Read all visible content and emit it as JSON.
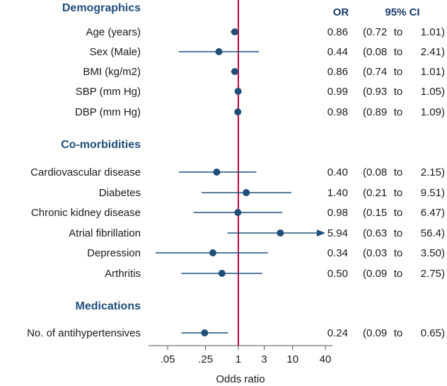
{
  "chart_data": {
    "type": "forest",
    "xlabel": "Odds ratio",
    "xscale": "log",
    "xlim": [
      0.02,
      50
    ],
    "reference_line": 1,
    "ticks": [
      {
        "value": 0.05,
        "label": ".05"
      },
      {
        "value": 0.25,
        "label": ".25"
      },
      {
        "value": 1,
        "label": "1"
      },
      {
        "value": 3,
        "label": "3"
      },
      {
        "value": 10,
        "label": "10"
      },
      {
        "value": 40,
        "label": "40"
      }
    ],
    "headers": {
      "or": "OR",
      "ci": "95% CI"
    },
    "colors": {
      "point": "#1f4e79",
      "line": "#1f4e79",
      "reference": "#c0003c",
      "section": "#1f4e79"
    },
    "sections": [
      {
        "title": "Demographics",
        "rows": [
          {
            "label": "Age (years)",
            "or": 0.86,
            "lo": 0.72,
            "hi": 1.01,
            "or_text": "0.86",
            "lo_text": "0.72",
            "to": "to",
            "hi_text": "1.01"
          },
          {
            "label": "Sex (Male)",
            "or": 0.44,
            "lo": 0.08,
            "hi": 2.41,
            "or_text": "0.44",
            "lo_text": "0.08",
            "to": "to",
            "hi_text": "2.41"
          },
          {
            "label": "BMI (kg/m2)",
            "or": 0.86,
            "lo": 0.74,
            "hi": 1.01,
            "or_text": "0.86",
            "lo_text": "0.74",
            "to": "to",
            "hi_text": "1.01"
          },
          {
            "label": "SBP (mm Hg)",
            "or": 0.99,
            "lo": 0.93,
            "hi": 1.05,
            "or_text": "0.99",
            "lo_text": "0.93",
            "to": "to",
            "hi_text": "1.05"
          },
          {
            "label": "DBP (mm Hg)",
            "or": 0.98,
            "lo": 0.89,
            "hi": 1.09,
            "or_text": "0.98",
            "lo_text": "0.89",
            "to": "to",
            "hi_text": "1.09"
          }
        ]
      },
      {
        "title": "Co-morbidities",
        "rows": [
          {
            "label": "Cardiovascular disease",
            "or": 0.4,
            "lo": 0.08,
            "hi": 2.15,
            "or_text": "0.40",
            "lo_text": "0.08",
            "to": "to",
            "hi_text": "2.15"
          },
          {
            "label": "Diabetes",
            "or": 1.4,
            "lo": 0.21,
            "hi": 9.51,
            "or_text": "1.40",
            "lo_text": "0.21",
            "to": "to",
            "hi_text": "9.51"
          },
          {
            "label": "Chronic kidney disease",
            "or": 0.98,
            "lo": 0.15,
            "hi": 6.47,
            "or_text": "0.98",
            "lo_text": "0.15",
            "to": "to",
            "hi_text": "6.47"
          },
          {
            "label": "Atrial fibrillation",
            "or": 5.94,
            "lo": 0.63,
            "hi": 56.4,
            "arrow": true,
            "or_text": "5.94",
            "lo_text": "0.63",
            "to": "to",
            "hi_text": "56.4"
          },
          {
            "label": "Depression",
            "or": 0.34,
            "lo": 0.03,
            "hi": 3.5,
            "or_text": "0.34",
            "lo_text": "0.03",
            "to": "to",
            "hi_text": "3.50"
          },
          {
            "label": "Arthritis",
            "or": 0.5,
            "lo": 0.09,
            "hi": 2.75,
            "or_text": "0.50",
            "lo_text": "0.09",
            "to": "to",
            "hi_text": "2.75"
          }
        ]
      },
      {
        "title": "Medications",
        "rows": [
          {
            "label": "No. of antihypertensives",
            "or": 0.24,
            "lo": 0.09,
            "hi": 0.65,
            "or_text": "0.24",
            "lo_text": "0.09",
            "to": "to",
            "hi_text": "0.65"
          }
        ]
      }
    ]
  }
}
